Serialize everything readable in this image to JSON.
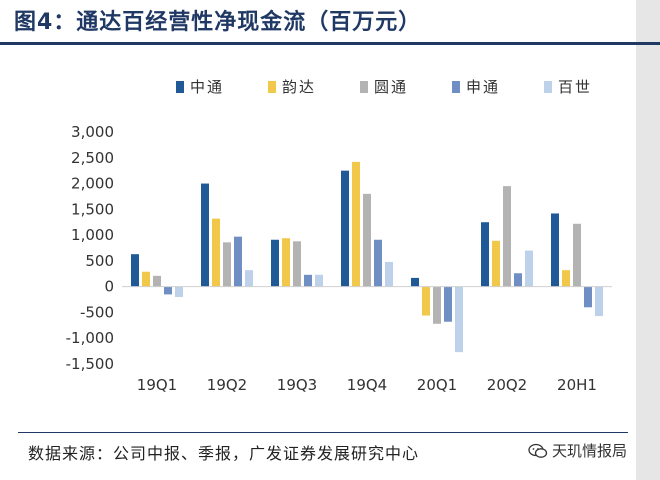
{
  "figure": {
    "title": "图4：通达百经营性净现金流（百万元）",
    "source": "数据来源：公司中报、季报，广发证券发展研究中心",
    "watermark": "天玑情报局"
  },
  "chart_data": {
    "type": "bar",
    "title": "通达百经营性净现金流（百万元）",
    "xlabel": "",
    "ylabel": "",
    "ylim": [
      -1500,
      3000
    ],
    "yticks": [
      -1500,
      -1000,
      -500,
      0,
      500,
      1000,
      1500,
      2000,
      2500,
      3000
    ],
    "ytick_labels": [
      "-1,500",
      "-1,000",
      "-500",
      "0",
      "500",
      "1,000",
      "1,500",
      "2,000",
      "2,500",
      "3,000"
    ],
    "grid": false,
    "legend_position": "top",
    "categories": [
      "19Q1",
      "19Q2",
      "19Q3",
      "19Q4",
      "20Q1",
      "20Q2",
      "20H1"
    ],
    "series": [
      {
        "name": "中通",
        "color": "#1f5a96",
        "values": [
          630,
          2000,
          910,
          2250,
          170,
          1250,
          1420
        ]
      },
      {
        "name": "韵达",
        "color": "#f2c84b",
        "values": [
          290,
          1320,
          940,
          2420,
          -560,
          890,
          320
        ]
      },
      {
        "name": "圆通",
        "color": "#b3b3b3",
        "values": [
          210,
          860,
          880,
          1800,
          -720,
          1950,
          1220
        ]
      },
      {
        "name": "申通",
        "color": "#6f8fc4",
        "values": [
          -150,
          970,
          230,
          910,
          -680,
          260,
          -400
        ]
      },
      {
        "name": "百世",
        "color": "#bdd1ea",
        "values": [
          -200,
          320,
          230,
          480,
          -1270,
          700,
          -570
        ]
      }
    ]
  }
}
